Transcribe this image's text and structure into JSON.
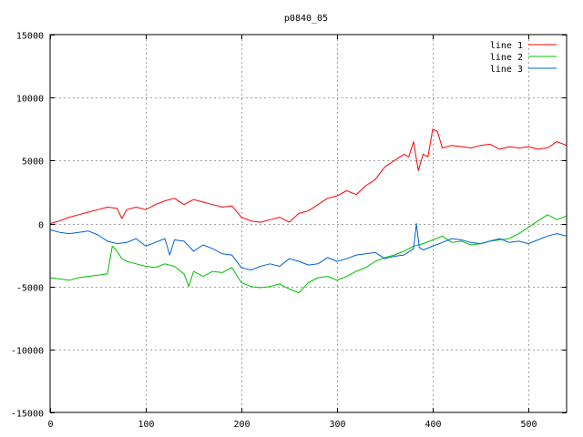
{
  "chart_data": {
    "type": "line",
    "title": "p0840_05",
    "xlabel": "",
    "ylabel": "",
    "xlim": [
      0,
      540
    ],
    "ylim": [
      -15000,
      15000
    ],
    "xticks": [
      0,
      100,
      200,
      300,
      400,
      500
    ],
    "yticks": [
      -15000,
      -10000,
      -5000,
      0,
      5000,
      10000,
      15000
    ],
    "grid": true,
    "legend_position": "top-right",
    "series": [
      {
        "name": "line 1",
        "color": "#ff0000",
        "x": [
          0,
          10,
          20,
          30,
          40,
          50,
          60,
          70,
          75,
          80,
          90,
          100,
          110,
          120,
          130,
          140,
          150,
          160,
          170,
          180,
          190,
          200,
          210,
          220,
          230,
          240,
          250,
          260,
          270,
          280,
          290,
          300,
          310,
          320,
          330,
          340,
          350,
          360,
          370,
          375,
          380,
          385,
          390,
          395,
          400,
          405,
          410,
          420,
          430,
          440,
          450,
          460,
          470,
          480,
          490,
          500,
          510,
          520,
          530,
          540
        ],
        "y": [
          0,
          200,
          500,
          700,
          900,
          1100,
          1300,
          1200,
          400,
          1100,
          1300,
          1100,
          1500,
          1800,
          2000,
          1500,
          1900,
          1700,
          1500,
          1300,
          1400,
          500,
          200,
          100,
          300,
          500,
          100,
          800,
          1000,
          1500,
          2000,
          2200,
          2600,
          2300,
          3000,
          3500,
          4500,
          5000,
          5500,
          5300,
          6500,
          4200,
          5500,
          5300,
          7500,
          7300,
          6000,
          6200,
          6100,
          6000,
          6200,
          6300,
          5900,
          6100,
          6000,
          6100,
          5900,
          6000,
          6500,
          6200
        ]
      },
      {
        "name": "line 2",
        "color": "#00c000",
        "x": [
          0,
          10,
          20,
          30,
          40,
          50,
          60,
          65,
          70,
          75,
          80,
          90,
          100,
          110,
          120,
          130,
          140,
          145,
          150,
          160,
          170,
          180,
          190,
          200,
          210,
          220,
          230,
          240,
          250,
          260,
          270,
          280,
          290,
          300,
          310,
          320,
          330,
          340,
          350,
          360,
          370,
          380,
          390,
          400,
          410,
          420,
          430,
          440,
          450,
          460,
          470,
          480,
          490,
          500,
          510,
          520,
          530,
          540
        ],
        "y": [
          -4300,
          -4400,
          -4500,
          -4300,
          -4200,
          -4100,
          -4000,
          -1800,
          -2200,
          -2800,
          -3000,
          -3200,
          -3400,
          -3500,
          -3200,
          -3400,
          -4000,
          -5000,
          -3800,
          -4200,
          -3800,
          -3900,
          -3500,
          -4700,
          -5000,
          -5100,
          -5000,
          -4800,
          -5200,
          -5500,
          -4700,
          -4300,
          -4200,
          -4500,
          -4200,
          -3800,
          -3500,
          -3000,
          -2700,
          -2500,
          -2200,
          -1800,
          -1600,
          -1300,
          -1000,
          -1500,
          -1400,
          -1700,
          -1600,
          -1400,
          -1300,
          -1200,
          -800,
          -300,
          200,
          700,
          300,
          600
        ]
      },
      {
        "name": "line 3",
        "color": "#0060e0",
        "x": [
          0,
          10,
          20,
          30,
          40,
          50,
          60,
          70,
          80,
          90,
          100,
          110,
          120,
          125,
          130,
          140,
          150,
          160,
          170,
          180,
          190,
          200,
          210,
          220,
          230,
          240,
          250,
          260,
          270,
          280,
          290,
          300,
          310,
          320,
          330,
          340,
          350,
          360,
          370,
          380,
          383,
          386,
          390,
          400,
          410,
          420,
          430,
          440,
          450,
          460,
          470,
          480,
          490,
          500,
          510,
          520,
          530,
          540
        ],
        "y": [
          -500,
          -700,
          -800,
          -700,
          -600,
          -900,
          -1400,
          -1600,
          -1500,
          -1200,
          -1800,
          -1500,
          -1200,
          -2500,
          -1300,
          -1400,
          -2200,
          -1700,
          -2000,
          -2400,
          -2500,
          -3500,
          -3700,
          -3400,
          -3200,
          -3400,
          -2800,
          -3000,
          -3300,
          -3200,
          -2700,
          -3000,
          -2800,
          -2500,
          -2400,
          -2300,
          -2800,
          -2600,
          -2500,
          -2000,
          0,
          -1900,
          -2100,
          -1800,
          -1500,
          -1200,
          -1300,
          -1500,
          -1600,
          -1400,
          -1200,
          -1500,
          -1400,
          -1600,
          -1300,
          -1000,
          -800,
          -1000
        ]
      }
    ]
  }
}
